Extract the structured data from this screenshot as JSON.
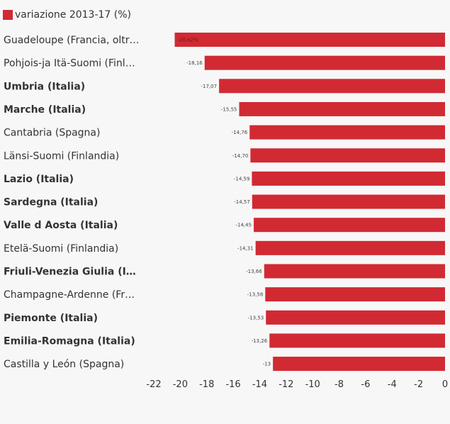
{
  "chart_data": {
    "type": "bar",
    "orientation": "horizontal",
    "legend": {
      "label": "variazione 2013-17 (%)",
      "position": "top-left"
    },
    "series": [
      {
        "name": "variazione 2013-17 (%)",
        "color": "#d12a33"
      }
    ],
    "categories": [
      {
        "label": "Guadeloupe (Francia, oltr…",
        "bold": false,
        "value": -20.42,
        "value_label": "-20,42%"
      },
      {
        "label": "Pohjois-ja Itä-Suomi (Finl…",
        "bold": false,
        "value": -18.16,
        "value_label": "-18,16"
      },
      {
        "label": "Umbria (Italia)",
        "bold": true,
        "value": -17.07,
        "value_label": "-17,07"
      },
      {
        "label": "Marche (Italia)",
        "bold": true,
        "value": -15.55,
        "value_label": "-15,55"
      },
      {
        "label": "Cantabria (Spagna)",
        "bold": false,
        "value": -14.76,
        "value_label": "-14,76"
      },
      {
        "label": "Länsi-Suomi (Finlandia)",
        "bold": false,
        "value": -14.7,
        "value_label": "-14,70"
      },
      {
        "label": "Lazio (Italia)",
        "bold": true,
        "value": -14.59,
        "value_label": "-14,59"
      },
      {
        "label": "Sardegna (Italia)",
        "bold": true,
        "value": -14.57,
        "value_label": "-14,57"
      },
      {
        "label": "Valle d Aosta (Italia)",
        "bold": true,
        "value": -14.45,
        "value_label": "-14,45"
      },
      {
        "label": "Etelä-Suomi (Finlandia)",
        "bold": false,
        "value": -14.31,
        "value_label": "-14,31"
      },
      {
        "label": "Friuli-Venezia Giulia (I…",
        "bold": true,
        "value": -13.66,
        "value_label": "-13,66"
      },
      {
        "label": "Champagne-Ardenne (Fr…",
        "bold": false,
        "value": -13.58,
        "value_label": "-13,58"
      },
      {
        "label": "Piemonte (Italia)",
        "bold": true,
        "value": -13.53,
        "value_label": "-13,53"
      },
      {
        "label": "Emilia-Romagna (Italia)",
        "bold": true,
        "value": -13.26,
        "value_label": "-13,26"
      },
      {
        "label": "Castilla y León (Spagna)",
        "bold": false,
        "value": -13.0,
        "value_label": "-13"
      }
    ],
    "x_axis": {
      "range": [
        -22,
        0
      ],
      "ticks": [
        -22,
        -20,
        -18,
        -16,
        -14,
        -12,
        -10,
        -8,
        -6,
        -4,
        -2,
        0
      ],
      "tick_labels": [
        "-22",
        "-20",
        "-18",
        "-16",
        "-14",
        "-12",
        "-10",
        "-8",
        "-6",
        "-4",
        "-2",
        "0"
      ]
    },
    "grid": false,
    "colors": {
      "bar": "#d12a33",
      "background": "#f7f7f7",
      "text": "#333333"
    }
  }
}
